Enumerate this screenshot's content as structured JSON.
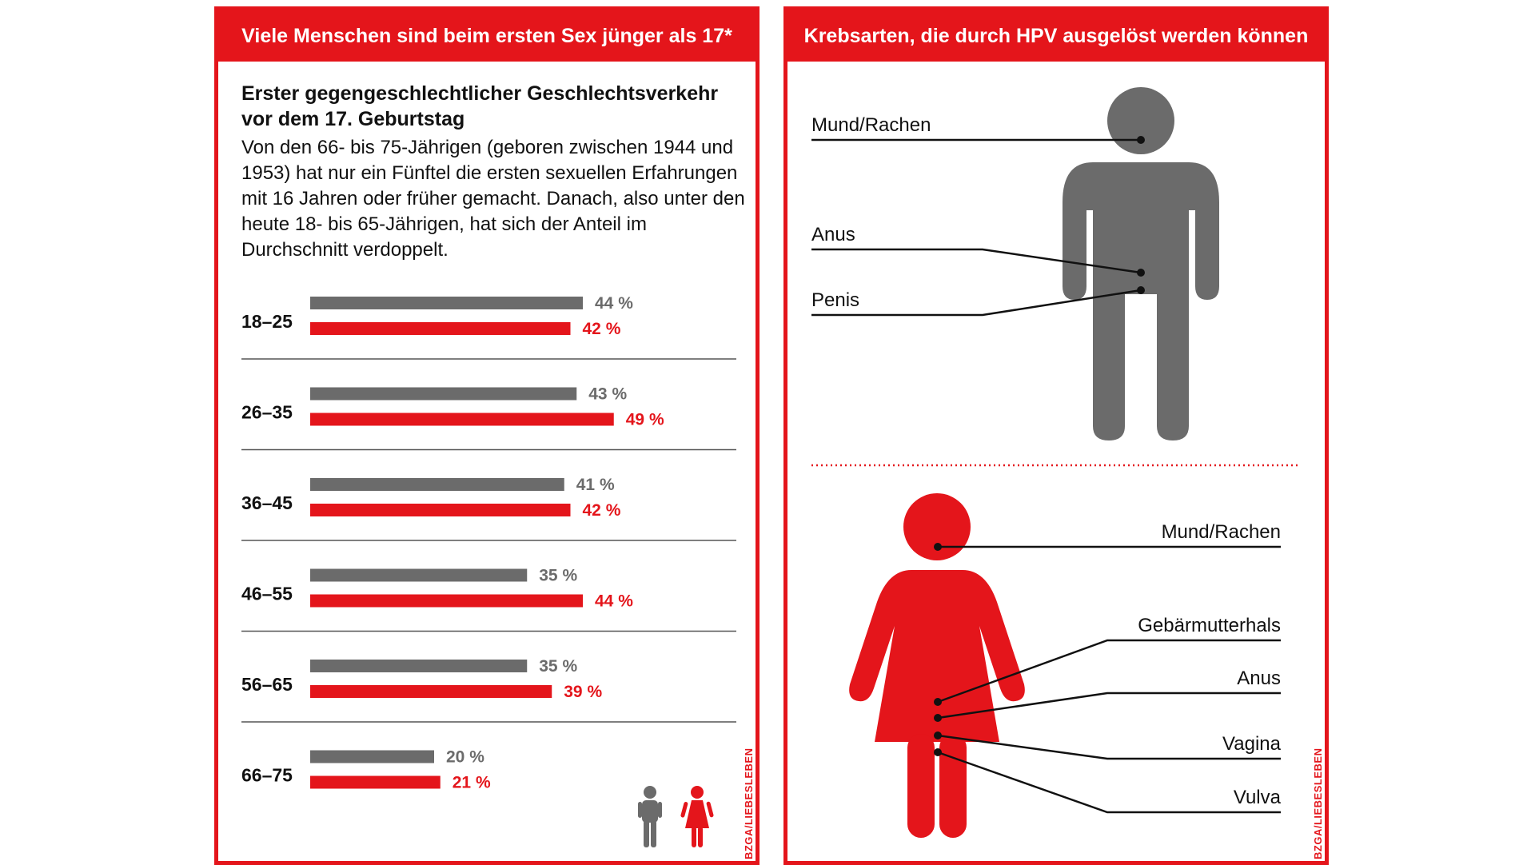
{
  "left_panel": {
    "header": "Viele Menschen sind beim ersten Sex jünger als 17*",
    "subtitle": "Erster gegengeschlechtlicher Geschlechtsverkehr vor dem 17. Geburtstag",
    "description": "Von den 66- bis 75-Jährigen (geboren zwischen 1944 und 1953) hat nur ein Fünftel die ersten sexuellen Erfahrungen mit 16 Jahren oder früher gemacht. Danach, also unter den heute 18- bis 65-Jährigen, hat sich der Anteil im Durchschnitt verdoppelt.",
    "credit": "BZGA/LIEBESLEBEN",
    "legend_icons": {
      "male": "male-figure-icon",
      "female": "female-figure-icon"
    }
  },
  "chart_data": {
    "type": "bar",
    "orientation": "horizontal",
    "categories": [
      "18–25",
      "26–35",
      "36–45",
      "46–55",
      "56–65",
      "66–75"
    ],
    "series": [
      {
        "values": [
          44,
          43,
          41,
          35,
          35,
          20
        ],
        "color": "#6b6b6b"
      },
      {
        "values": [
          42,
          49,
          42,
          44,
          39,
          21
        ],
        "color": "#e4151b"
      }
    ],
    "value_suffix": " %",
    "xlim": [
      0,
      100
    ]
  },
  "right_panel": {
    "header": "Krebsarten, die durch HPV ausgelöst werden können",
    "credit": "BZGA/LIEBESLEBEN",
    "male_labels": [
      "Mund/Rachen",
      "Anus",
      "Penis"
    ],
    "female_labels": [
      "Mund/Rachen",
      "Gebärmutterhals",
      "Anus",
      "Vagina",
      "Vulva"
    ],
    "colors": {
      "male": "#6b6b6b",
      "female": "#e4151b",
      "accent": "#e4151b"
    }
  }
}
